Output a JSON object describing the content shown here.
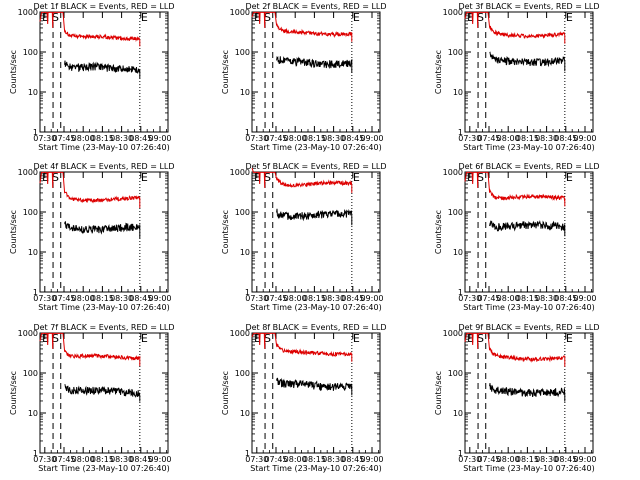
{
  "common": {
    "ylabel": "Counts/sec",
    "xlabel": "Start Time (23-May-10 07:26:40)",
    "y_ticks": [
      1,
      10,
      100,
      1000
    ],
    "y_tick_labels": [
      "1",
      "10",
      "100",
      "1000"
    ],
    "x_ticks": [
      0.0625,
      0.3125,
      0.5625,
      0.8125,
      1.0625,
      1.3125,
      1.5625
    ],
    "x_tick_labels": [
      "07:30",
      "07:45",
      "08:00",
      "08:15",
      "08:30",
      "08:45",
      "09:00"
    ],
    "marker_E": "E",
    "marker_S": "S",
    "marker_E2": "E"
  },
  "chart_data": [
    {
      "type": "line",
      "title": "Det 1f BLACK = Events, RED = LLD",
      "red_level": 230,
      "black_level": 40,
      "xlim": [
        0,
        1.6667
      ],
      "ylim": [
        1,
        1000
      ],
      "log_y": true,
      "series": [
        {
          "name": "Events",
          "color": "#000000"
        },
        {
          "name": "LLD",
          "color": "#dd0000"
        }
      ]
    },
    {
      "type": "line",
      "title": "Det 2f BLACK = Events, RED = LLD",
      "red_level": 300,
      "black_level": 55,
      "xlim": [
        0,
        1.6667
      ],
      "ylim": [
        1,
        1000
      ],
      "log_y": true,
      "series": [
        {
          "name": "Events",
          "color": "#000000"
        },
        {
          "name": "LLD",
          "color": "#dd0000"
        }
      ]
    },
    {
      "type": "line",
      "title": "Det 3f BLACK = Events, RED = LLD",
      "red_level": 270,
      "black_level": 60,
      "xlim": [
        0,
        1.6667
      ],
      "ylim": [
        1,
        1000
      ],
      "log_y": true,
      "series": [
        {
          "name": "Events",
          "color": "#000000"
        },
        {
          "name": "LLD",
          "color": "#dd0000"
        }
      ]
    },
    {
      "type": "line",
      "title": "Det 4f BLACK = Events, RED = LLD",
      "red_level": 210,
      "black_level": 40,
      "xlim": [
        0,
        1.6667
      ],
      "ylim": [
        1,
        1000
      ],
      "log_y": true,
      "series": [
        {
          "name": "Events",
          "color": "#000000"
        },
        {
          "name": "LLD",
          "color": "#dd0000"
        }
      ]
    },
    {
      "type": "line",
      "title": "Det 5f BLACK = Events, RED = LLD",
      "red_level": 500,
      "black_level": 85,
      "xlim": [
        0,
        1.6667
      ],
      "ylim": [
        1,
        1000
      ],
      "log_y": true,
      "series": [
        {
          "name": "Events",
          "color": "#000000"
        },
        {
          "name": "LLD",
          "color": "#dd0000"
        }
      ]
    },
    {
      "type": "line",
      "title": "Det 6f BLACK = Events, RED = LLD",
      "red_level": 230,
      "black_level": 45,
      "xlim": [
        0,
        1.6667
      ],
      "ylim": [
        1,
        1000
      ],
      "log_y": true,
      "series": [
        {
          "name": "Events",
          "color": "#000000"
        },
        {
          "name": "LLD",
          "color": "#dd0000"
        }
      ]
    },
    {
      "type": "line",
      "title": "Det 7f BLACK = Events, RED = LLD",
      "red_level": 250,
      "black_level": 35,
      "xlim": [
        0,
        1.6667
      ],
      "ylim": [
        1,
        1000
      ],
      "log_y": true,
      "series": [
        {
          "name": "Events",
          "color": "#000000"
        },
        {
          "name": "LLD",
          "color": "#dd0000"
        }
      ]
    },
    {
      "type": "line",
      "title": "Det 8f BLACK = Events, RED = LLD",
      "red_level": 320,
      "black_level": 50,
      "xlim": [
        0,
        1.6667
      ],
      "ylim": [
        1,
        1000
      ],
      "log_y": true,
      "series": [
        {
          "name": "Events",
          "color": "#000000"
        },
        {
          "name": "LLD",
          "color": "#dd0000"
        }
      ]
    },
    {
      "type": "line",
      "title": "Det 9f BLACK = Events, RED = LLD",
      "red_level": 240,
      "black_level": 35,
      "xlim": [
        0,
        1.6667
      ],
      "ylim": [
        1,
        1000
      ],
      "log_y": true,
      "series": [
        {
          "name": "Events",
          "color": "#000000"
        },
        {
          "name": "LLD",
          "color": "#dd0000"
        }
      ]
    }
  ]
}
